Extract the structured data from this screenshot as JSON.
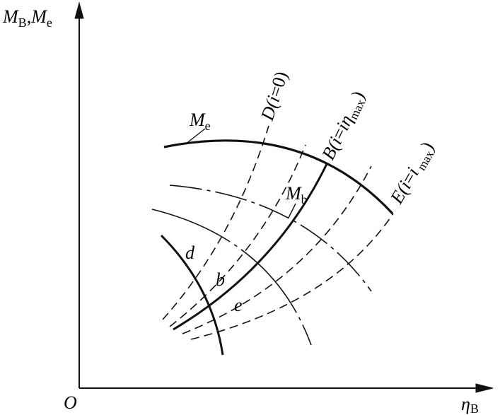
{
  "axes": {
    "y_label": [
      {
        "text": "M"
      },
      {
        "sub": "B"
      },
      {
        "text": ","
      },
      {
        "text": "M"
      },
      {
        "sub": "e"
      }
    ],
    "x_label": [
      {
        "text": "η"
      },
      {
        "sub": "B"
      }
    ],
    "origin": "O"
  },
  "curves": {
    "Me": [
      {
        "text": "M"
      },
      {
        "sub": "e"
      }
    ],
    "Mb": [
      {
        "text": "M"
      },
      {
        "sub": "b"
      }
    ],
    "D": [
      {
        "text": "D("
      },
      {
        "italic": "i"
      },
      {
        "text": "=0)"
      }
    ],
    "B": [
      {
        "text": "B("
      },
      {
        "italic": "i"
      },
      {
        "text": "="
      },
      {
        "italic": "i"
      },
      {
        "italic": "η"
      },
      {
        "sub": "max"
      },
      {
        "text": ")"
      }
    ],
    "E": [
      {
        "text": "E("
      },
      {
        "italic": "i"
      },
      {
        "text": "="
      },
      {
        "italic": "i"
      },
      {
        "sub": " max"
      },
      {
        "text": ")"
      }
    ]
  },
  "points": {
    "d": "d",
    "b": "b",
    "e": "e"
  }
}
